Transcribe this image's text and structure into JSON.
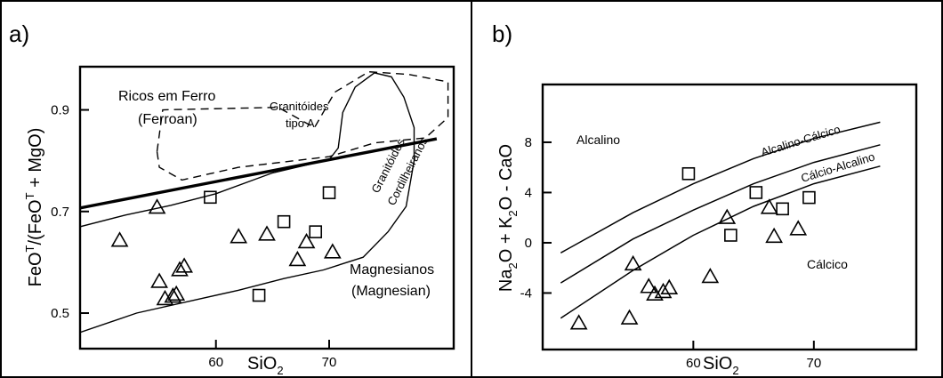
{
  "chart_data": [
    {
      "type": "scatter",
      "panel_label": "a)",
      "xlabel_main": "SiO",
      "xlabel_sub": "2",
      "ylabel_parts": [
        "FeO",
        "T",
        "/(FeO",
        "T",
        " + MgO)"
      ],
      "xlim": [
        48,
        81
      ],
      "ylim": [
        0.43,
        0.985
      ],
      "x_ticks": [
        60,
        70
      ],
      "y_ticks": [
        0.5,
        0.7,
        0.9
      ],
      "y_tick_labels": [
        "0.5",
        "0.7",
        "0.9"
      ],
      "grid": false,
      "fields": {
        "ferroan_line": [
          [
            48,
            0.707
          ],
          [
            79.5,
            0.843
          ]
        ],
        "granitoides_tipo_a": [
          [
            54.8,
            0.818
          ],
          [
            55.3,
            0.9
          ],
          [
            65.5,
            0.905
          ],
          [
            68.7,
            0.865
          ],
          [
            70.5,
            0.935
          ],
          [
            73.5,
            0.975
          ],
          [
            77,
            0.97
          ],
          [
            80.5,
            0.955
          ],
          [
            80.5,
            0.885
          ],
          [
            78.5,
            0.845
          ],
          [
            74,
            0.835
          ],
          [
            70,
            0.808
          ],
          [
            62,
            0.787
          ],
          [
            57,
            0.762
          ],
          [
            55,
            0.787
          ],
          [
            54.8,
            0.818
          ]
        ],
        "cordilleran": [
          [
            48,
            0.67
          ],
          [
            52,
            0.693
          ],
          [
            56,
            0.712
          ],
          [
            60,
            0.735
          ],
          [
            65,
            0.776
          ],
          [
            70,
            0.802
          ],
          [
            70.8,
            0.825
          ],
          [
            71.2,
            0.895
          ],
          [
            72.3,
            0.945
          ],
          [
            74,
            0.973
          ],
          [
            75.5,
            0.965
          ],
          [
            76.6,
            0.925
          ],
          [
            77.5,
            0.865
          ],
          [
            77.5,
            0.8
          ],
          [
            76.8,
            0.71
          ],
          [
            75.2,
            0.66
          ],
          [
            73,
            0.61
          ],
          [
            69.5,
            0.585
          ],
          [
            66,
            0.568
          ],
          [
            62,
            0.545
          ],
          [
            58,
            0.525
          ],
          [
            53,
            0.5
          ],
          [
            48,
            0.462
          ]
        ]
      },
      "series": [
        {
          "marker": "triangle",
          "x": [
            51.5,
            54.8,
            55.0,
            55.5,
            56.2,
            56.5,
            56.8,
            57.2,
            62.0,
            64.5,
            67.2,
            68.0,
            70.3
          ],
          "y": [
            0.643,
            0.708,
            0.562,
            0.528,
            0.533,
            0.537,
            0.585,
            0.592,
            0.65,
            0.655,
            0.605,
            0.64,
            0.62
          ]
        },
        {
          "marker": "square",
          "x": [
            59.5,
            63.8,
            66.0,
            68.8,
            70.0
          ],
          "y": [
            0.728,
            0.535,
            0.68,
            0.66,
            0.737
          ]
        }
      ],
      "annotations": {
        "ricos_line1": "Ricos em Ferro",
        "ricos_line2": "(Ferroan)",
        "tipo_a_line1": "Granitóides",
        "tipo_a_line2": "tipo A",
        "cordil_line1": "Granitóides",
        "cordil_line2": "Cordilheiranos",
        "magnes_line1": "Magnesianos",
        "magnes_line2": "(Magnesian)"
      }
    },
    {
      "type": "scatter",
      "panel_label": "b)",
      "xlabel_main": "SiO",
      "xlabel_sub": "2",
      "ylabel_parts": [
        "Na",
        "2",
        "O + K",
        "2",
        "O - CaO"
      ],
      "xlim": [
        47.5,
        78.5
      ],
      "ylim": [
        -8.5,
        12.6
      ],
      "x_ticks": [
        60,
        70
      ],
      "y_ticks": [
        8,
        4,
        0,
        -4
      ],
      "y_tick_labels": [
        "8",
        "4",
        "0",
        "-4"
      ],
      "grid": false,
      "fields": {
        "curve_alcalino": [
          [
            49,
            -0.8
          ],
          [
            55,
            2.4
          ],
          [
            60,
            4.7
          ],
          [
            65,
            6.7
          ],
          [
            70,
            8.3
          ],
          [
            75.5,
            9.6
          ]
        ],
        "curve_alcalino_calcico": [
          [
            49,
            -3.2
          ],
          [
            55,
            0.3
          ],
          [
            60,
            2.6
          ],
          [
            65,
            4.7
          ],
          [
            70,
            6.4
          ],
          [
            75.5,
            7.8
          ]
        ],
        "curve_calcio_alcalino": [
          [
            49,
            -6.0
          ],
          [
            55,
            -2.2
          ],
          [
            60,
            0.6
          ],
          [
            65,
            2.9
          ],
          [
            70,
            4.7
          ],
          [
            75.5,
            6.1
          ]
        ]
      },
      "series": [
        {
          "marker": "triangle",
          "x": [
            50.5,
            54.7,
            55.0,
            56.3,
            56.8,
            57.5,
            58.0,
            61.4,
            62.8,
            66.3,
            66.7,
            68.7
          ],
          "y": [
            -6.4,
            -6.0,
            -1.7,
            -3.5,
            -4.1,
            -3.9,
            -3.6,
            -2.7,
            2.0,
            2.8,
            0.5,
            1.1
          ]
        },
        {
          "marker": "square",
          "x": [
            59.6,
            63.1,
            65.2,
            67.4,
            69.6
          ],
          "y": [
            5.5,
            0.6,
            4.0,
            2.7,
            3.6
          ]
        }
      ],
      "annotations": {
        "alcalino": "Alcalino",
        "alcalino_calcico": "Alcalino-Cálcico",
        "calcio_alcalino": "Cálcio-Alcalino",
        "calcico": "Cálcico"
      }
    }
  ]
}
